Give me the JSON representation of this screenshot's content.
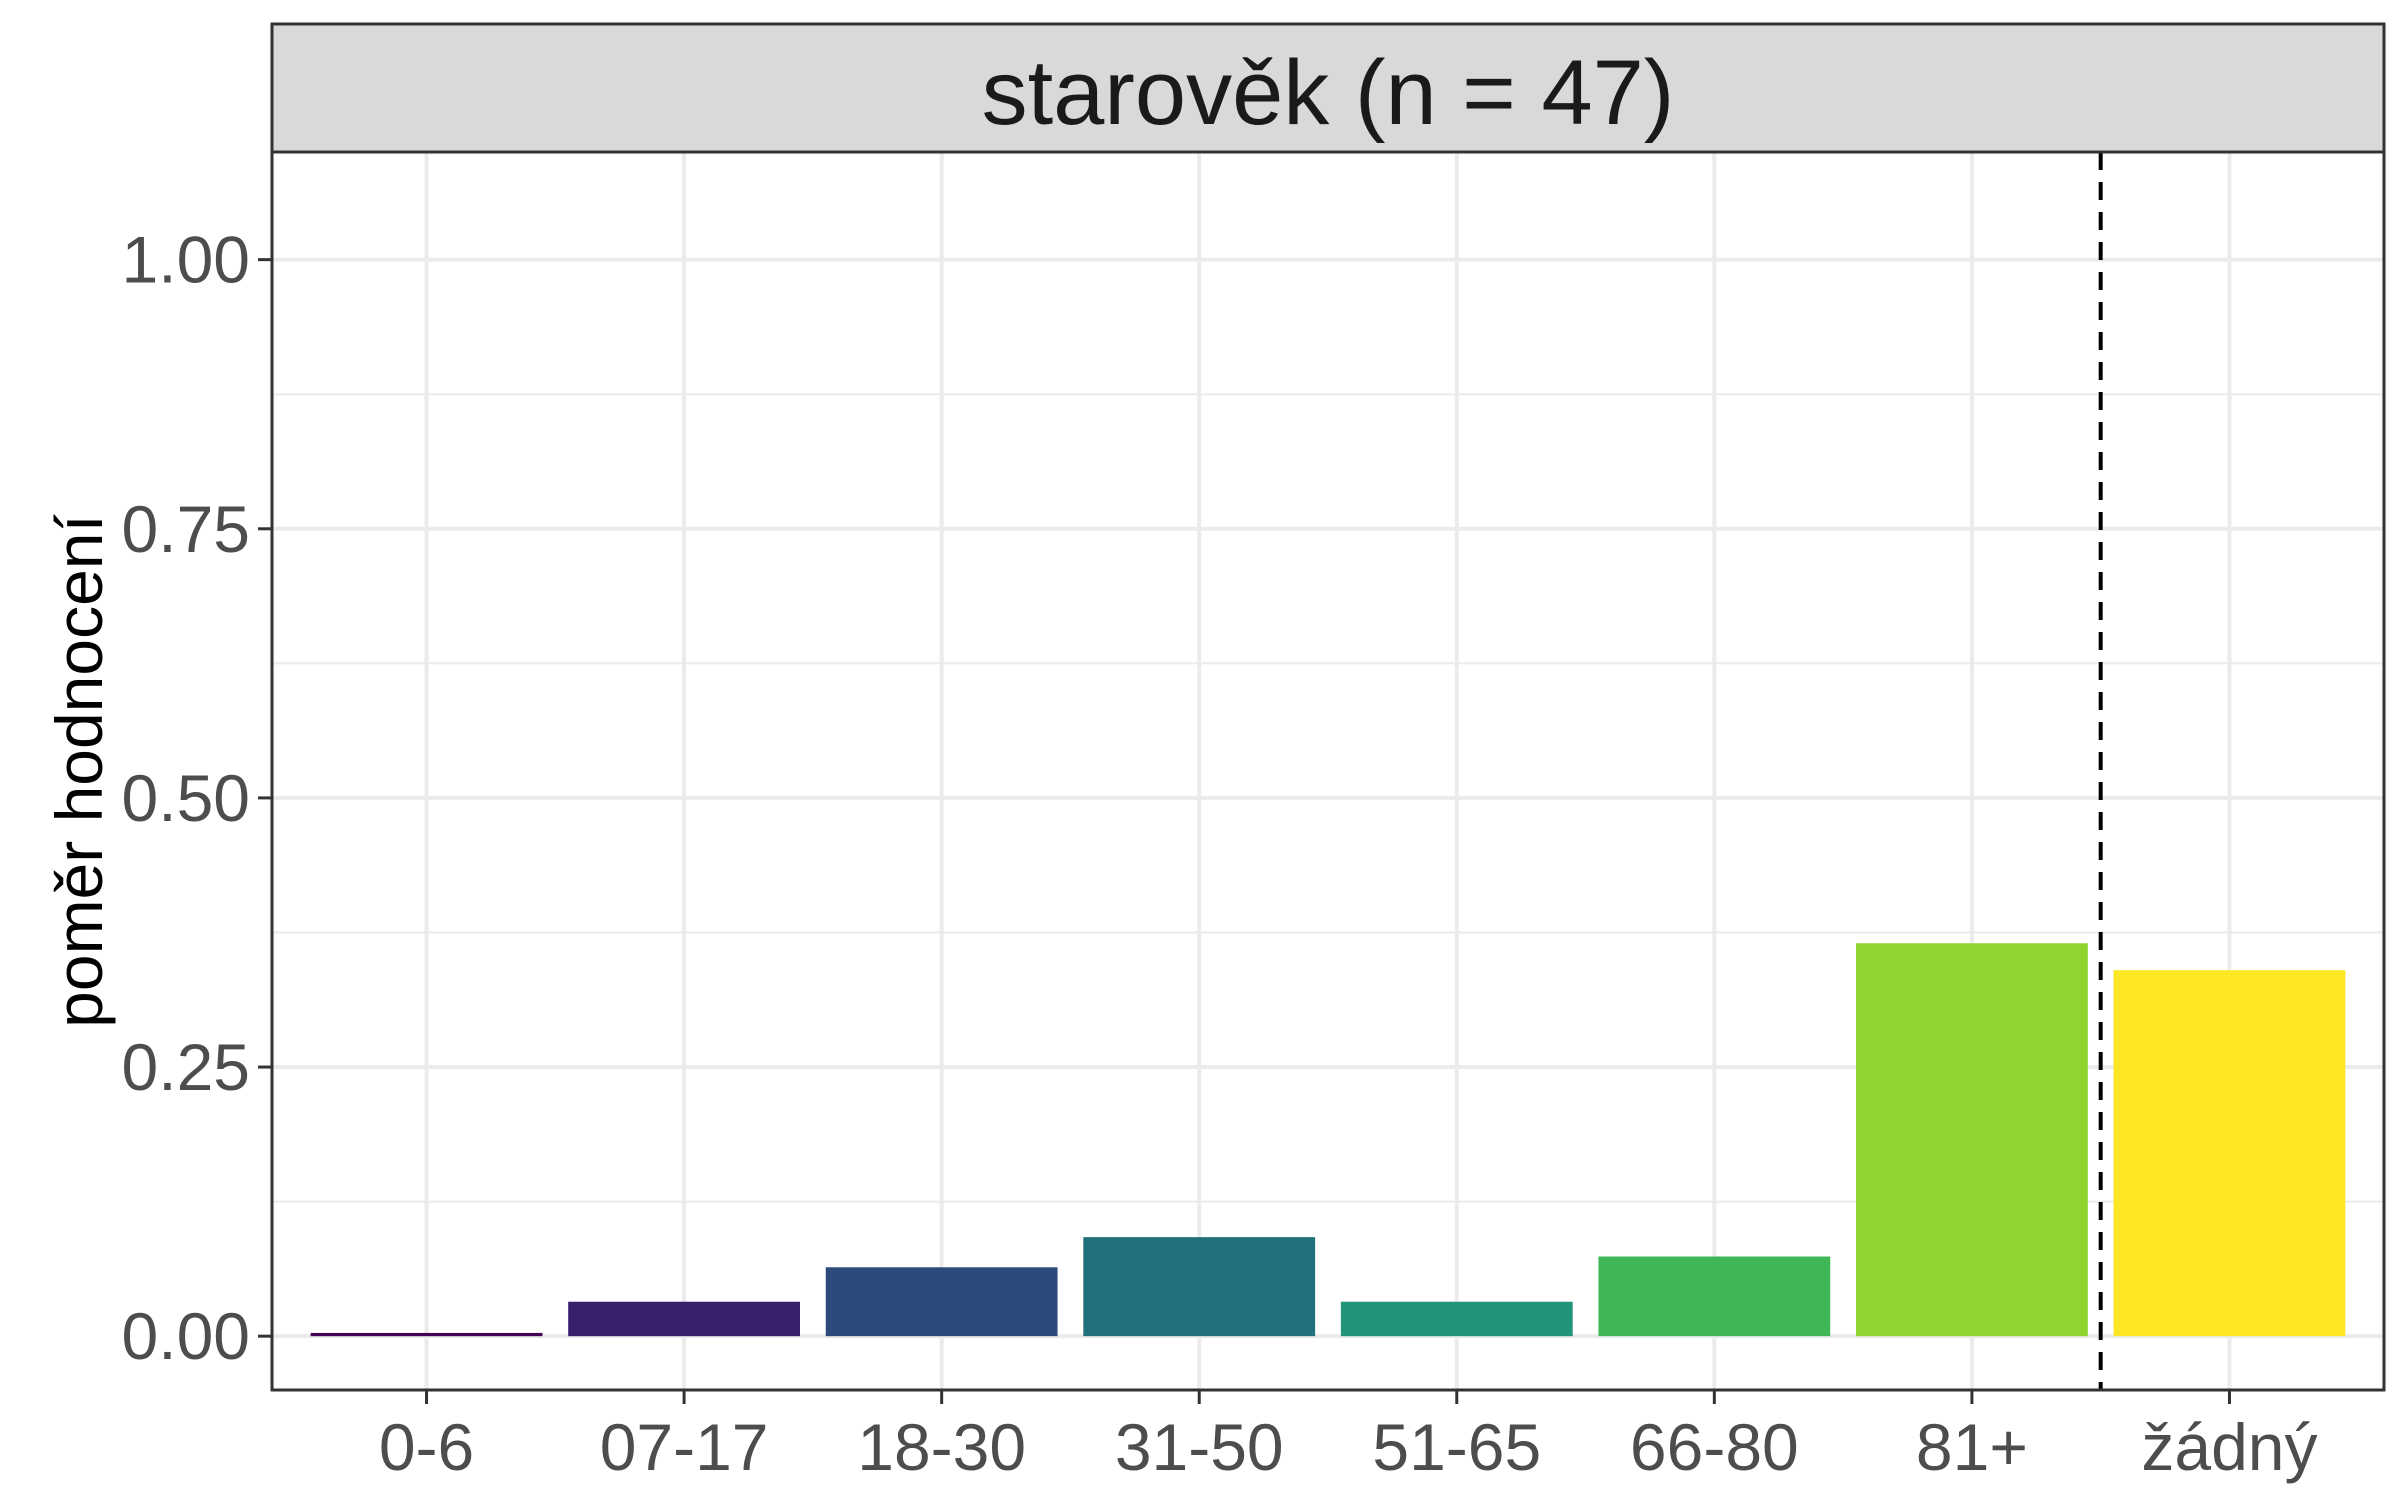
{
  "chart_data": {
    "type": "bar",
    "title": "starověk (n = 47)",
    "xlabel": "",
    "ylabel": "poměr hodnocení",
    "categories": [
      "0-6",
      "07-17",
      "18-30",
      "31-50",
      "51-65",
      "66-80",
      "81+",
      "žádný"
    ],
    "values": [
      0.003,
      0.032,
      0.064,
      0.092,
      0.032,
      0.074,
      0.365,
      0.34
    ],
    "colors": [
      "#440154",
      "#3b1f6f",
      "#2c4a7c",
      "#23707d",
      "#21947a",
      "#40b756",
      "#8fd42f",
      "#fde725"
    ],
    "ylim": [
      -0.05,
      1.1
    ],
    "yticks": [
      0,
      0.25,
      0.5,
      0.75,
      1
    ],
    "ytick_labels": [
      "0.00",
      "0.25",
      "0.50",
      "0.75",
      "1.00"
    ],
    "reference_line": {
      "style": "dashed",
      "between": [
        "81+",
        "žádný"
      ]
    },
    "grid": true,
    "legend": "none"
  }
}
